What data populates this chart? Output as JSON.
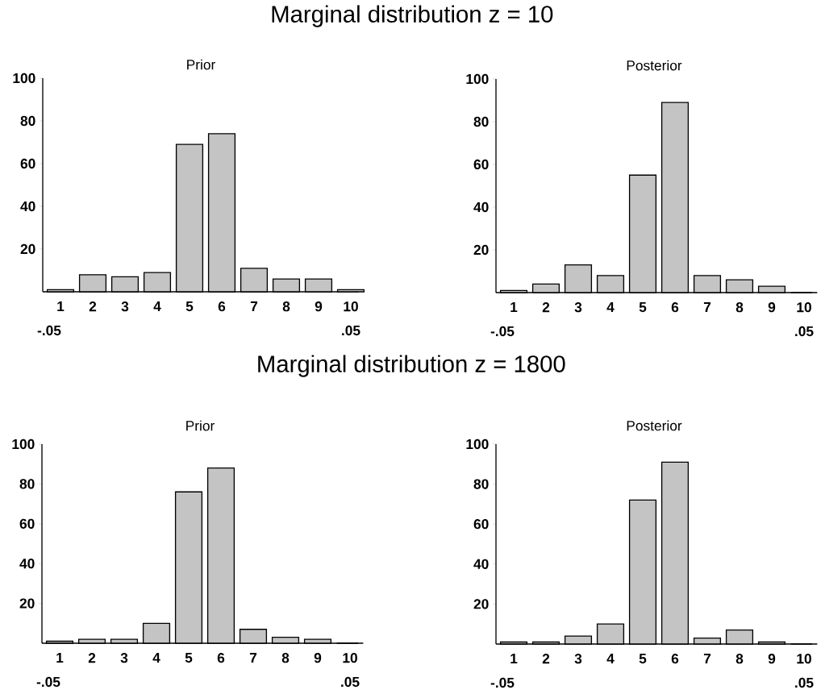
{
  "chart_data": [
    {
      "type": "bar",
      "title": "Marginal distribution z = 10",
      "subtitle": "Prior",
      "categories": [
        "1",
        "2",
        "3",
        "4",
        "5",
        "6",
        "7",
        "8",
        "9",
        "10"
      ],
      "values": [
        1,
        8,
        7,
        9,
        69,
        74,
        11,
        6,
        6,
        1
      ],
      "color": "#c4c4c4",
      "ylim": [
        0,
        100
      ],
      "yticks": [
        20,
        40,
        60,
        80,
        100
      ],
      "annotations": [
        "-.05",
        ".05"
      ]
    },
    {
      "type": "bar",
      "title": "Posterior",
      "categories": [
        "1",
        "2",
        "3",
        "4",
        "5",
        "6",
        "7",
        "8",
        "9",
        "10"
      ],
      "values": [
        1,
        4,
        13,
        8,
        55,
        89,
        8,
        6,
        3,
        0
      ],
      "color": "#c4c4c4",
      "ylim": [
        0,
        100
      ],
      "yticks": [
        20,
        40,
        60,
        80,
        100
      ],
      "annotations": [
        "-.05",
        ".05"
      ]
    },
    {
      "type": "bar",
      "title": "Marginal distribution z = 1800",
      "subtitle": "Prior",
      "categories": [
        "1",
        "2",
        "3",
        "4",
        "5",
        "6",
        "7",
        "8",
        "9",
        "10"
      ],
      "values": [
        1,
        2,
        2,
        10,
        76,
        88,
        7,
        3,
        2,
        0
      ],
      "color": "#c4c4c4",
      "ylim": [
        0,
        100
      ],
      "yticks": [
        20,
        40,
        60,
        80,
        100
      ],
      "annotations": [
        "-.05",
        ".05"
      ]
    },
    {
      "type": "bar",
      "title": "Posterior",
      "categories": [
        "1",
        "2",
        "3",
        "4",
        "5",
        "6",
        "7",
        "8",
        "9",
        "10"
      ],
      "values": [
        1,
        1,
        4,
        10,
        72,
        91,
        3,
        7,
        1,
        0
      ],
      "color": "#c4c4c4",
      "ylim": [
        0,
        100
      ],
      "yticks": [
        20,
        40,
        60,
        80,
        100
      ],
      "annotations": [
        "-.05",
        ".05"
      ]
    }
  ]
}
